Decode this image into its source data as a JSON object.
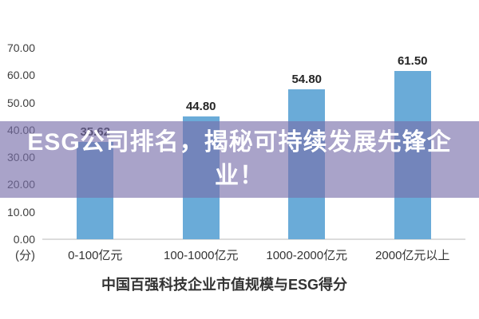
{
  "banner": {
    "full_text": "ESG公司排名，揭秘可持续发展先锋企业！",
    "lines": [
      "ESG公司排名，揭秘可持续发展先锋企",
      "业！"
    ],
    "bg_color": "rgba(120,111,171,0.64)",
    "text_color": "#ffffff"
  },
  "chart_data": {
    "type": "bar",
    "title": "中国百强科技企业市值规模与ESG得分",
    "categories": [
      "0-100亿元",
      "100-1000亿元",
      "1000-2000亿元",
      "2000亿元以上"
    ],
    "values": [
      35.62,
      44.8,
      54.8,
      61.5
    ],
    "value_labels": [
      "35.62",
      "44.80",
      "54.80",
      "61.50"
    ],
    "ylabel": "(分)",
    "ylim": [
      0,
      70
    ],
    "ytick_interval": 10,
    "yticks": [
      "70.00",
      "60.00",
      "50.00",
      "40.00",
      "30.00",
      "20.00",
      "10.00",
      "0.00"
    ],
    "bar_color": "#6aabd8",
    "axis_line_color": "#dcdcdc",
    "grid": false,
    "legend": null
  }
}
